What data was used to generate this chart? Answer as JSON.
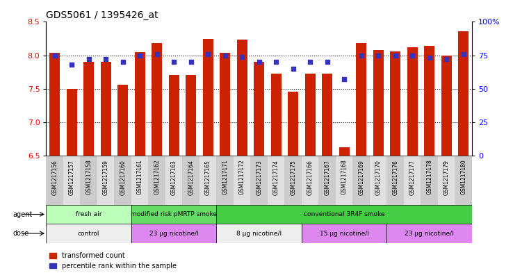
{
  "title": "GDS5061 / 1395426_at",
  "samples": [
    "GSM1217156",
    "GSM1217157",
    "GSM1217158",
    "GSM1217159",
    "GSM1217160",
    "GSM1217161",
    "GSM1217162",
    "GSM1217163",
    "GSM1217164",
    "GSM1217165",
    "GSM1217171",
    "GSM1217172",
    "GSM1217173",
    "GSM1217174",
    "GSM1217175",
    "GSM1217166",
    "GSM1217167",
    "GSM1217168",
    "GSM1217169",
    "GSM1217170",
    "GSM1217176",
    "GSM1217177",
    "GSM1217178",
    "GSM1217179",
    "GSM1217180"
  ],
  "bar_values": [
    8.04,
    7.5,
    7.9,
    7.9,
    7.56,
    8.05,
    8.18,
    7.7,
    7.7,
    8.25,
    8.04,
    8.23,
    7.9,
    7.73,
    7.46,
    7.73,
    7.73,
    6.62,
    8.18,
    8.08,
    8.06,
    8.12,
    8.14,
    8.0,
    8.36
  ],
  "percentile_values": [
    75,
    68,
    72,
    72,
    70,
    75,
    76,
    70,
    70,
    76,
    75,
    74,
    70,
    70,
    65,
    70,
    70,
    57,
    75,
    75,
    75,
    75,
    73,
    72,
    76
  ],
  "ylim_left": [
    6.5,
    8.5
  ],
  "ylim_right": [
    0,
    100
  ],
  "bar_color": "#cc2200",
  "dot_color": "#3333bb",
  "title_fontsize": 10,
  "agents": [
    {
      "label": "fresh air",
      "start": 0,
      "end": 5,
      "color": "#bbffbb"
    },
    {
      "label": "modified risk pMRTP smoke",
      "start": 5,
      "end": 10,
      "color": "#66dd66"
    },
    {
      "label": "conventional 3R4F smoke",
      "start": 10,
      "end": 25,
      "color": "#44cc44"
    }
  ],
  "doses": [
    {
      "label": "control",
      "start": 0,
      "end": 5,
      "color": "#eeeeee"
    },
    {
      "label": "23 μg nicotine/l",
      "start": 5,
      "end": 10,
      "color": "#dd88ee"
    },
    {
      "label": "8 μg nicotine/l",
      "start": 10,
      "end": 15,
      "color": "#eeeeee"
    },
    {
      "label": "15 μg nicotine/l",
      "start": 15,
      "end": 20,
      "color": "#dd88ee"
    },
    {
      "label": "23 μg nicotine/l",
      "start": 20,
      "end": 25,
      "color": "#dd88ee"
    }
  ],
  "yticks_left": [
    6.5,
    7.0,
    7.5,
    8.0,
    8.5
  ],
  "yticks_right": [
    0,
    25,
    50,
    75,
    100
  ],
  "dotted_lines": [
    7.0,
    7.5,
    8.0
  ]
}
